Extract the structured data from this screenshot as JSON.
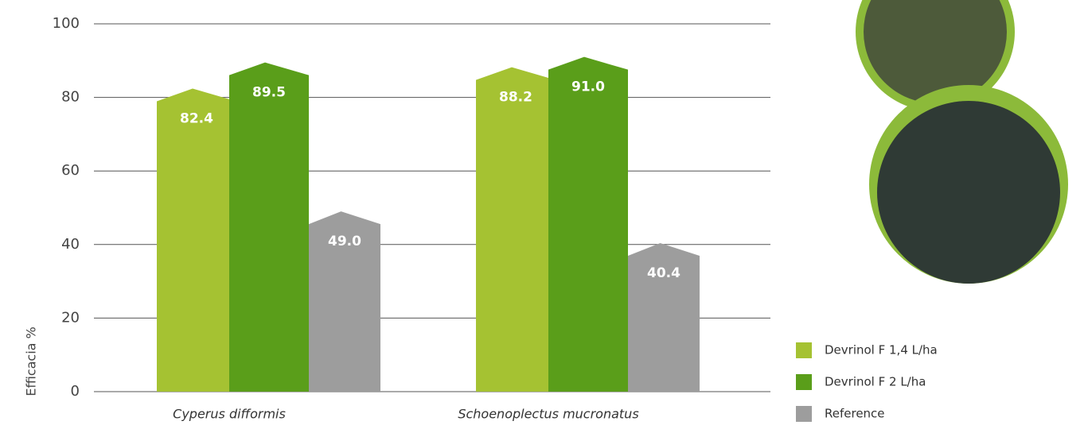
{
  "chart_data": {
    "type": "bar",
    "y_label": "Efficacia %",
    "categories": [
      "Cyperus difformis",
      "Schoenoplectus mucronatus"
    ],
    "series": [
      {
        "name": "Devrinol F 1,4 L/ha",
        "color": "#a5c232",
        "values": [
          82.4,
          88.2
        ],
        "value_labels": [
          "82.4",
          "88.2"
        ]
      },
      {
        "name": "Devrinol F 2 L/ha",
        "color": "#5a9e1a",
        "values": [
          89.5,
          91.0
        ],
        "value_labels": [
          "89.5",
          "91.0"
        ]
      },
      {
        "name": "Reference",
        "color": "#9d9d9d",
        "values": [
          49.0,
          40.4
        ],
        "value_labels": [
          "49.0",
          "40.4"
        ]
      }
    ],
    "ylim": [
      0,
      100
    ],
    "yticks": [
      0,
      20,
      40,
      60,
      80,
      100
    ],
    "grid": true
  }
}
